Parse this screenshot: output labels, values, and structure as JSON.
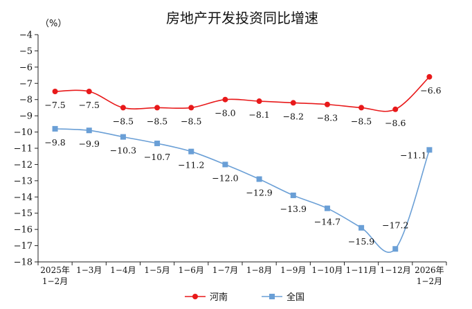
{
  "chart_data": {
    "type": "line",
    "title": "房地产开发投资同比增速",
    "unit_label": "（%）",
    "ylim": [
      -18,
      -4
    ],
    "ytick_values": [
      -4,
      -5,
      -6,
      -7,
      -8,
      -9,
      -10,
      -11,
      -12,
      -13,
      -14,
      -15,
      -16,
      -17,
      -18
    ],
    "ytick_labels": [
      "−4",
      "−5",
      "−6",
      "−7",
      "−8",
      "−9",
      "−10",
      "−11",
      "−12",
      "−13",
      "−14",
      "−15",
      "−16",
      "−17",
      "−18"
    ],
    "categories": [
      [
        "2025年",
        "1−2月"
      ],
      [
        "1−3月"
      ],
      [
        "1−4月"
      ],
      [
        "1−5月"
      ],
      [
        "1−6月"
      ],
      [
        "1−7月"
      ],
      [
        "1−8月"
      ],
      [
        "1−9月"
      ],
      [
        "1−10月"
      ],
      [
        "1−11月"
      ],
      [
        "1−12月"
      ],
      [
        "2026年",
        "1−2月"
      ]
    ],
    "grid": false,
    "legend_position": "bottom-center",
    "series": [
      {
        "name": "河南",
        "color": "#e8191a",
        "marker": "circle",
        "values": [
          -7.5,
          -7.5,
          -8.5,
          -8.5,
          -8.5,
          -8.0,
          -8.1,
          -8.2,
          -8.3,
          -8.5,
          -8.6,
          -6.6
        ],
        "labels": [
          "−7.5",
          "−7.5",
          "−8.5",
          "−8.5",
          "−8.5",
          "−8.0",
          "−8.1",
          "−8.2",
          "−8.3",
          "−8.5",
          "−8.6",
          "−6.6"
        ]
      },
      {
        "name": "全国",
        "color": "#6a9fd6",
        "marker": "square",
        "values": [
          -9.8,
          -9.9,
          -10.3,
          -10.7,
          -11.2,
          -12.0,
          -12.9,
          -13.9,
          -14.7,
          -15.9,
          -17.2,
          -11.1
        ],
        "labels": [
          "−9.8",
          "−9.9",
          "−10.3",
          "−10.7",
          "−11.2",
          "−12.0",
          "−12.9",
          "−13.9",
          "−14.7",
          "−15.9",
          "−17.2",
          "−11.1"
        ]
      }
    ]
  }
}
